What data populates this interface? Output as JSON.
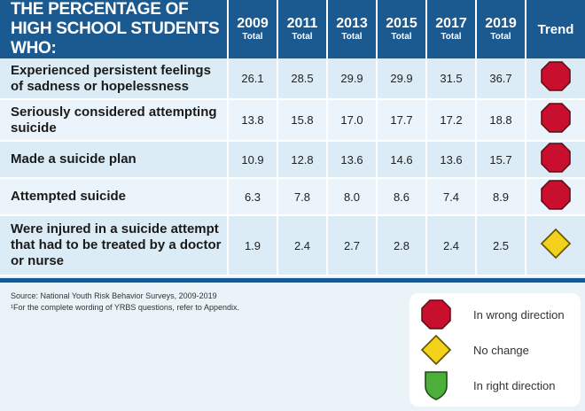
{
  "header": {
    "title": "THE PERCENTAGE OF HIGH SCHOOL STUDENTS WHO:",
    "years": [
      {
        "year": "2009",
        "sub": "Total"
      },
      {
        "year": "2011",
        "sub": "Total"
      },
      {
        "year": "2013",
        "sub": "Total"
      },
      {
        "year": "2015",
        "sub": "Total"
      },
      {
        "year": "2017",
        "sub": "Total"
      },
      {
        "year": "2019",
        "sub": "Total"
      }
    ],
    "trend_label": "Trend"
  },
  "rows": [
    {
      "label": "Experienced persistent feelings of sadness or hopelessness",
      "values": [
        "26.1",
        "28.5",
        "29.9",
        "29.9",
        "31.5",
        "36.7"
      ],
      "trend": "wrong"
    },
    {
      "label": "Seriously considered attempting suicide",
      "values": [
        "13.8",
        "15.8",
        "17.0",
        "17.7",
        "17.2",
        "18.8"
      ],
      "trend": "wrong"
    },
    {
      "label": "Made a suicide plan",
      "values": [
        "10.9",
        "12.8",
        "13.6",
        "14.6",
        "13.6",
        "15.7"
      ],
      "trend": "wrong"
    },
    {
      "label": "Attempted suicide",
      "values": [
        "6.3",
        "7.8",
        "8.0",
        "8.6",
        "7.4",
        "8.9"
      ],
      "trend": "wrong"
    },
    {
      "label": "Were injured in a suicide attempt that had to be treated by a doctor or nurse",
      "values": [
        "1.9",
        "2.4",
        "2.7",
        "2.8",
        "2.4",
        "2.5"
      ],
      "trend": "no-change"
    }
  ],
  "notes": {
    "source": "Source: National Youth Risk Behavior Surveys, 2009-2019",
    "footnote": "¹For the complete wording of YRBS questions, refer to Appendix."
  },
  "legend": {
    "wrong": "In wrong direction",
    "no_change": "No change",
    "right": "In right direction"
  },
  "colors": {
    "header_bg": "#1b5a91",
    "stop_red": "#c8102e",
    "diamond_yellow": "#f2d21b",
    "shield_green": "#4caf3a"
  },
  "icons": {
    "wrong": "stop-octagon-icon",
    "no_change": "yellow-diamond-icon",
    "right": "green-shield-icon"
  }
}
